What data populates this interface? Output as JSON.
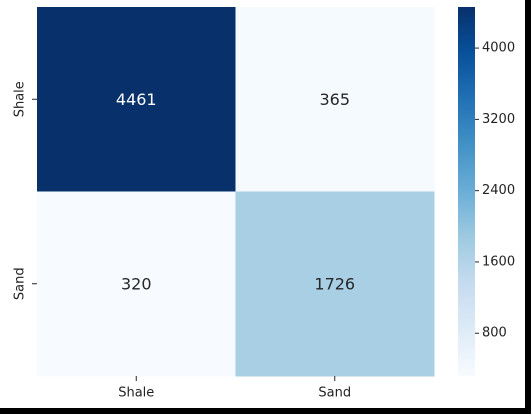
{
  "chart_data": {
    "type": "heatmap",
    "title": "",
    "xlabel": "",
    "ylabel": "",
    "x_categories": [
      "Shale",
      "Sand"
    ],
    "y_categories": [
      "Shale",
      "Sand"
    ],
    "values": [
      [
        4461,
        365
      ],
      [
        320,
        1726
      ]
    ],
    "annotations": [
      [
        "4461",
        "365"
      ],
      [
        "320",
        "1726"
      ]
    ],
    "colormap": "Blues",
    "vmin": 320,
    "vmax": 4461,
    "colorbar_ticks": [
      800,
      1600,
      2400,
      3200,
      4000
    ],
    "colorbar_tick_labels": [
      "800",
      "1600",
      "2400",
      "3200",
      "4000"
    ]
  }
}
